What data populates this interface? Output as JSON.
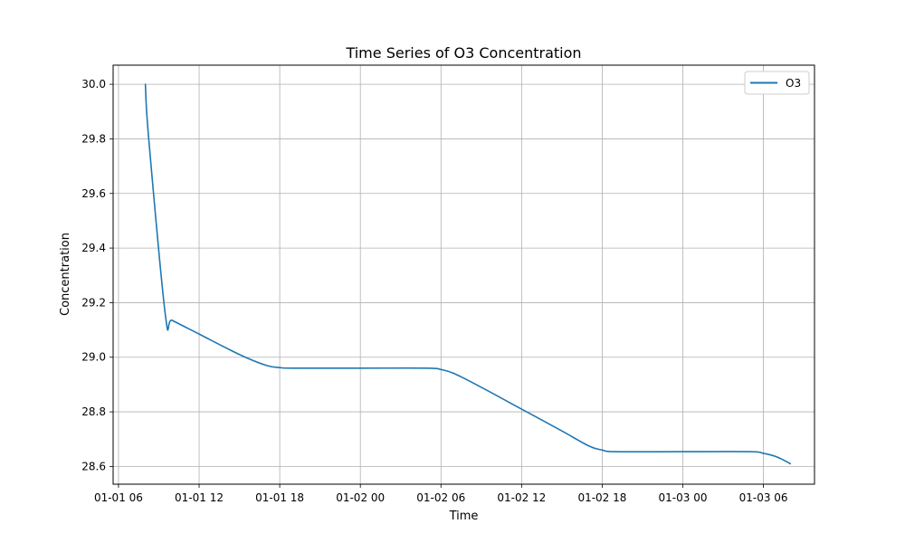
{
  "chart_data": {
    "type": "line",
    "title": "Time Series of O3 Concentration",
    "xlabel": "Time",
    "ylabel": "Concentration",
    "x_ticks": [
      "01-01 06",
      "01-01 12",
      "01-01 18",
      "01-02 00",
      "01-02 06",
      "01-02 12",
      "01-02 18",
      "01-03 00",
      "01-03 06"
    ],
    "xlim": [
      "2024-01-01 05:36",
      "2024-01-03 09:48"
    ],
    "ylim": [
      28.535,
      30.07
    ],
    "y_ticks": [
      28.6,
      28.8,
      29.0,
      29.2,
      29.4,
      29.6,
      29.8,
      30.0
    ],
    "grid": true,
    "legend": {
      "position": "top-right"
    },
    "series": [
      {
        "name": "O3",
        "color": "#1f77b4",
        "points": [
          {
            "x": "2024-01-01 08:00",
            "y": 30.0
          },
          {
            "x": "2024-01-01 08:15",
            "y": 29.8
          },
          {
            "x": "2024-01-01 09:30",
            "y": 29.15
          },
          {
            "x": "2024-01-01 10:00",
            "y": 29.135
          },
          {
            "x": "2024-01-01 12:00",
            "y": 29.085
          },
          {
            "x": "2024-01-01 15:00",
            "y": 29.01
          },
          {
            "x": "2024-01-01 17:00",
            "y": 28.97
          },
          {
            "x": "2024-01-01 18:00",
            "y": 28.962
          },
          {
            "x": "2024-01-01 19:00",
            "y": 28.96
          },
          {
            "x": "2024-01-02 00:00",
            "y": 28.96
          },
          {
            "x": "2024-01-02 05:00",
            "y": 28.96
          },
          {
            "x": "2024-01-02 06:00",
            "y": 28.955
          },
          {
            "x": "2024-01-02 07:00",
            "y": 28.94
          },
          {
            "x": "2024-01-02 09:00",
            "y": 28.89
          },
          {
            "x": "2024-01-02 12:00",
            "y": 28.81
          },
          {
            "x": "2024-01-02 15:00",
            "y": 28.73
          },
          {
            "x": "2024-01-02 17:00",
            "y": 28.675
          },
          {
            "x": "2024-01-02 18:00",
            "y": 28.66
          },
          {
            "x": "2024-01-02 19:00",
            "y": 28.654
          },
          {
            "x": "2024-01-03 00:00",
            "y": 28.654
          },
          {
            "x": "2024-01-03 05:00",
            "y": 28.654
          },
          {
            "x": "2024-01-03 06:00",
            "y": 28.648
          },
          {
            "x": "2024-01-03 07:00",
            "y": 28.635
          },
          {
            "x": "2024-01-03 08:00",
            "y": 28.61
          }
        ]
      }
    ]
  }
}
